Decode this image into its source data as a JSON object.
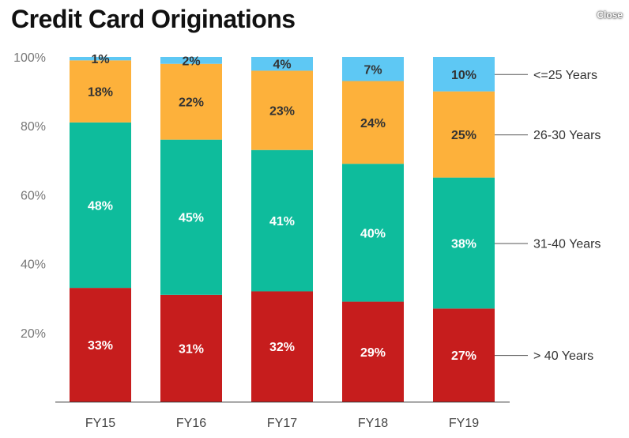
{
  "page": {
    "title": "Credit Card Originations",
    "close_label": "Close"
  },
  "chart_data": {
    "type": "bar",
    "stacked": true,
    "title": "Credit Card Originations",
    "xlabel": "",
    "ylabel": "",
    "ylim": [
      0,
      100
    ],
    "yticks": [
      "20%",
      "40%",
      "60%",
      "80%",
      "100%"
    ],
    "grid": false,
    "legend_position": "right",
    "categories": [
      "FY15",
      "FY16",
      "FY17",
      "FY18",
      "FY19"
    ],
    "series": [
      {
        "name": "> 40 Years",
        "color": "#c61d1d",
        "label_color": "#ffffff",
        "values": [
          33,
          31,
          32,
          29,
          27
        ]
      },
      {
        "name": "31-40 Years",
        "color": "#0ebc9c",
        "label_color": "#ffffff",
        "values": [
          48,
          45,
          41,
          40,
          38
        ]
      },
      {
        "name": "26-30 Years",
        "color": "#fdb13b",
        "label_color": "#333333",
        "values": [
          18,
          22,
          23,
          24,
          25
        ]
      },
      {
        "name": "<=25 Years",
        "color": "#5ec8f4",
        "label_color": "#333333",
        "values": [
          1,
          2,
          4,
          7,
          10
        ]
      }
    ]
  }
}
